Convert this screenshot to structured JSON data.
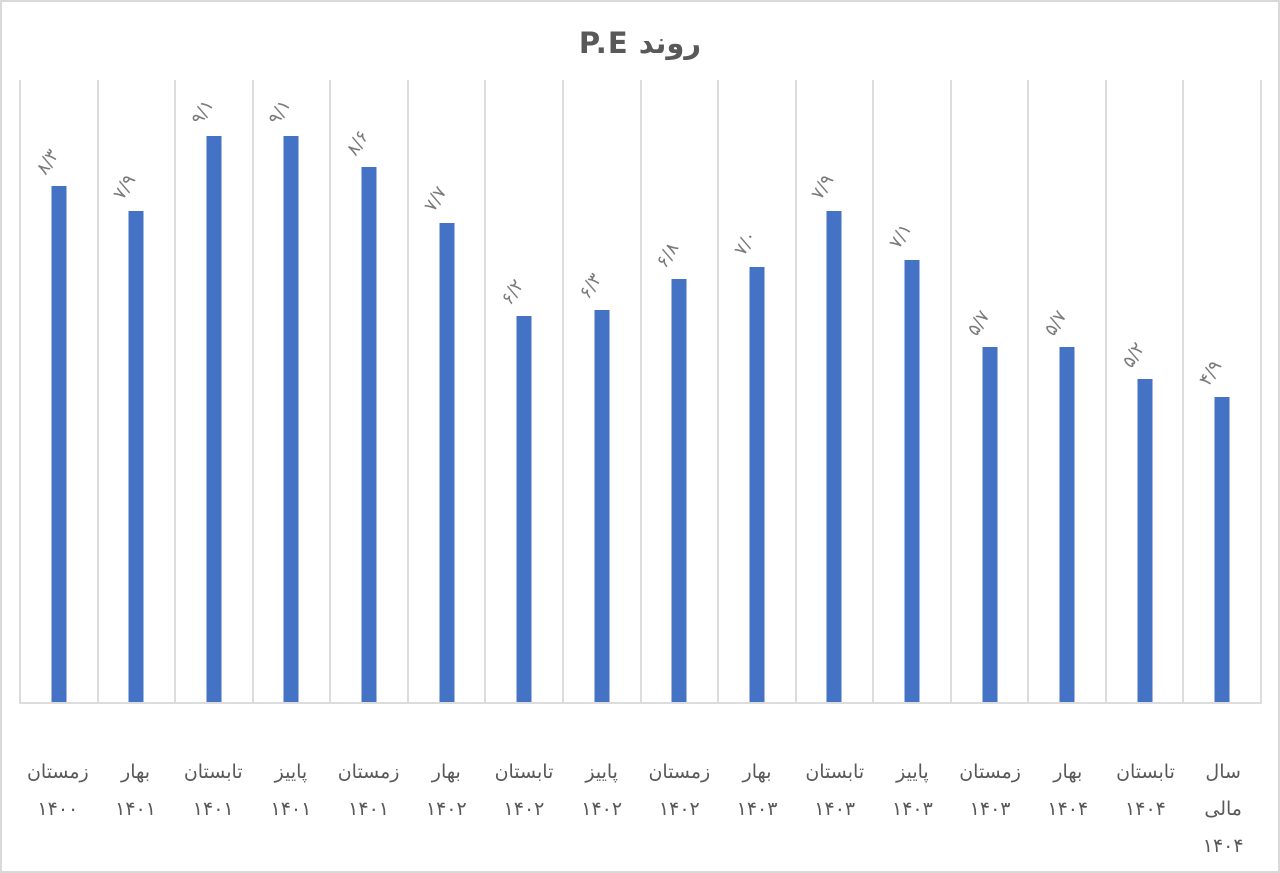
{
  "title": "روند P.E",
  "colors": {
    "bar": "#4472c4",
    "gridline": "#dcdcdc",
    "baseline": "#d9d9d9",
    "title_text": "#595959",
    "axis_label_text": "#595959",
    "value_label_text": "#7a7a7a",
    "background": "#ffffff",
    "border": "#d9d9d9"
  },
  "chart_data": {
    "type": "bar",
    "title": "روند P.E",
    "xlabel": "",
    "ylabel": "",
    "ylim": [
      0,
      10
    ],
    "grid": "vertical-category-gridlines-only",
    "legend": "none",
    "rtl_labels": true,
    "categories": [
      "زمستان ۱۴۰۰",
      "بهار ۱۴۰۱",
      "تابستان ۱۴۰۱",
      "پاییز ۱۴۰۱",
      "زمستان ۱۴۰۱",
      "بهار ۱۴۰۲",
      "تابستان ۱۴۰۲",
      "پاییز ۱۴۰۲",
      "زمستان ۱۴۰۲",
      "بهار ۱۴۰۳",
      "تابستان ۱۴۰۳",
      "پاییز ۱۴۰۳",
      "زمستان ۱۴۰۳",
      "بهار ۱۴۰۴",
      "تابستان ۱۴۰۴",
      "سال مالی ۱۴۰۴"
    ],
    "category_label_lines": [
      [
        "زمستان",
        "۱۴۰۰"
      ],
      [
        "بهار",
        "۱۴۰۱"
      ],
      [
        "تابستان",
        "۱۴۰۱"
      ],
      [
        "پاییز",
        "۱۴۰۱"
      ],
      [
        "زمستان",
        "۱۴۰۱"
      ],
      [
        "بهار",
        "۱۴۰۲"
      ],
      [
        "تابستان",
        "۱۴۰۲"
      ],
      [
        "پاییز",
        "۱۴۰۲"
      ],
      [
        "زمستان",
        "۱۴۰۲"
      ],
      [
        "بهار",
        "۱۴۰۳"
      ],
      [
        "تابستان",
        "۱۴۰۳"
      ],
      [
        "پاییز",
        "۱۴۰۳"
      ],
      [
        "زمستان",
        "۱۴۰۳"
      ],
      [
        "بهار",
        "۱۴۰۴"
      ],
      [
        "تابستان",
        "۱۴۰۴"
      ],
      [
        "سال",
        "مالی",
        "۱۴۰۴"
      ]
    ],
    "values": [
      8.3,
      7.9,
      9.1,
      9.1,
      8.6,
      7.7,
      6.2,
      6.3,
      6.8,
      7.0,
      7.9,
      7.1,
      5.7,
      5.7,
      5.2,
      4.9
    ],
    "value_labels": [
      "۸/۳",
      "۷/۹",
      "۹/۱",
      "۹/۱",
      "۸/۶",
      "۷/۷",
      "۶/۲",
      "۶/۳",
      "۶/۸",
      "۷/۰",
      "۷/۹",
      "۷/۱",
      "۵/۷",
      "۵/۷",
      "۵/۲",
      "۴/۹"
    ]
  }
}
